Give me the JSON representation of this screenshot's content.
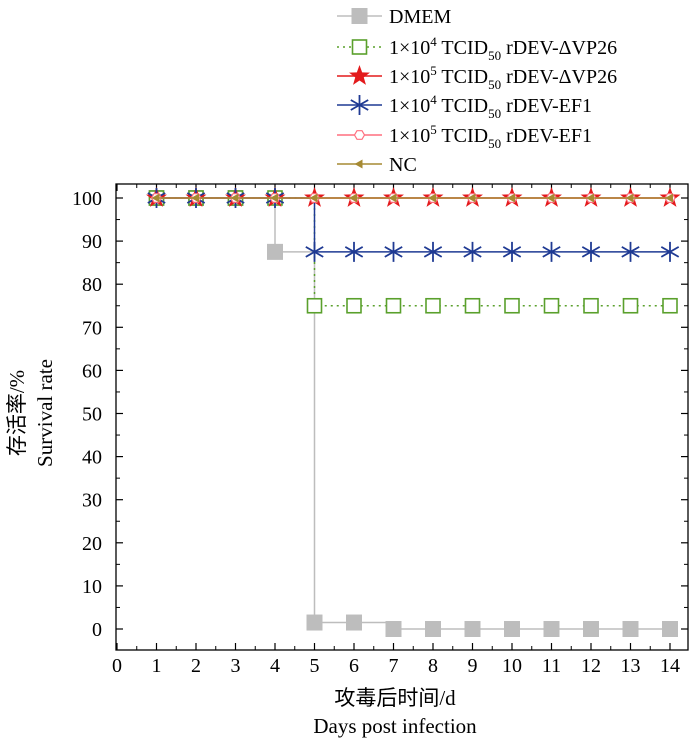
{
  "chart_data": {
    "type": "line",
    "title": "",
    "xlabel_cn": "攻毒后时间/d",
    "xlabel_en": "Days post infection",
    "ylabel_cn": "存活率/%",
    "ylabel_en": "Survival rate",
    "xlim": [
      0,
      14
    ],
    "ylim": [
      0,
      100
    ],
    "x_ticks": [
      "0",
      "1",
      "2",
      "3",
      "4",
      "5",
      "6",
      "7",
      "8",
      "9",
      "10",
      "11",
      "12",
      "13",
      "14"
    ],
    "y_ticks": [
      "0",
      "10",
      "20",
      "30",
      "40",
      "50",
      "60",
      "70",
      "80",
      "90",
      "100"
    ],
    "grid": false,
    "legend_position": "top",
    "x": [
      1,
      2,
      3,
      4,
      5,
      6,
      7,
      8,
      9,
      10,
      11,
      12,
      13,
      14
    ],
    "series": [
      {
        "name": "DMEM",
        "legend_parts": [
          "DMEM"
        ],
        "color": "#bdbdbd",
        "marker": "square-filled",
        "line": "solid",
        "values": [
          100,
          100,
          100,
          87.5,
          1.5,
          1.5,
          0,
          0,
          0,
          0,
          0,
          0,
          0,
          0
        ]
      },
      {
        "name": "1×10⁴ TCID₅₀ rDEV-ΔVP26",
        "legend_parts": [
          "1×10",
          "4",
          " TCID",
          "50",
          " rDEV-ΔVP26"
        ],
        "color": "#5aa02c",
        "marker": "square-open",
        "line": "dotted",
        "values": [
          100,
          100,
          100,
          100,
          75,
          75,
          75,
          75,
          75,
          75,
          75,
          75,
          75,
          75
        ]
      },
      {
        "name": "1×10⁵ TCID₅₀ rDEV-ΔVP26",
        "legend_parts": [
          "1×10",
          "5",
          " TCID",
          "50",
          " rDEV-ΔVP26"
        ],
        "color": "#e31a1c",
        "marker": "star",
        "line": "solid",
        "values": [
          100,
          100,
          100,
          100,
          100,
          100,
          100,
          100,
          100,
          100,
          100,
          100,
          100,
          100
        ]
      },
      {
        "name": "1×10⁴ TCID₅₀ rDEV-EF1",
        "legend_parts": [
          "1×10",
          "4",
          " TCID",
          "50",
          " rDEV-EF1"
        ],
        "color": "#1f3a93",
        "marker": "asterisk",
        "line": "solid",
        "values": [
          100,
          100,
          100,
          100,
          87.5,
          87.5,
          87.5,
          87.5,
          87.5,
          87.5,
          87.5,
          87.5,
          87.5,
          87.5
        ]
      },
      {
        "name": "1×10⁵ TCID₅₀ rDEV-EF1",
        "legend_parts": [
          "1×10",
          "5",
          " TCID",
          "50",
          " rDEV-EF1"
        ],
        "color": "#ff6f7f",
        "marker": "hexagon-open",
        "line": "solid",
        "values": [
          100,
          100,
          100,
          100,
          100,
          100,
          100,
          100,
          100,
          100,
          100,
          100,
          100,
          100
        ]
      },
      {
        "name": "NC",
        "legend_parts": [
          "NC"
        ],
        "color": "#a68a33",
        "marker": "triangle-left",
        "line": "solid",
        "values": [
          100,
          100,
          100,
          100,
          100,
          100,
          100,
          100,
          100,
          100,
          100,
          100,
          100,
          100
        ]
      }
    ]
  }
}
